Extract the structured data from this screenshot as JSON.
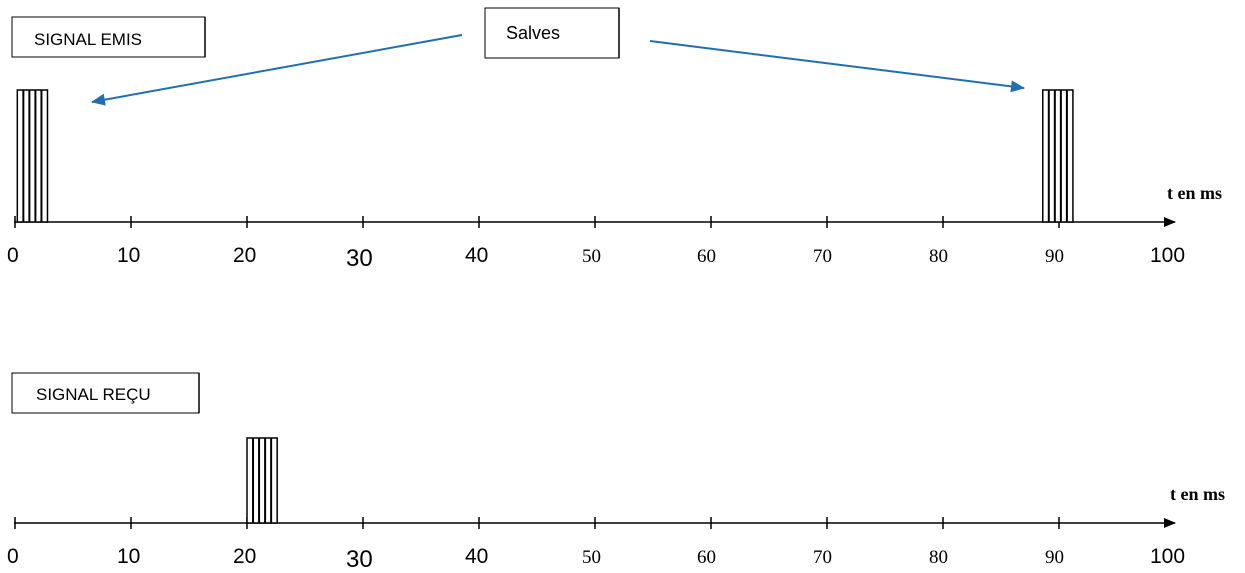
{
  "emitted": {
    "label": "SIGNAL EMIS",
    "unit": "t en ms",
    "tick_labels": [
      "0",
      "10",
      "20",
      "30",
      "40",
      "50",
      "60",
      "70",
      "80",
      "90",
      "100"
    ],
    "bursts_ms": [
      [
        0.2,
        2.8
      ],
      [
        88.6,
        91.2
      ]
    ]
  },
  "received": {
    "label": "SIGNAL REÇU",
    "unit": "t en ms",
    "tick_labels": [
      "0",
      "10",
      "20",
      "30",
      "40",
      "50",
      "60",
      "70",
      "80",
      "90",
      "100"
    ],
    "bursts_ms": [
      [
        20.0,
        22.6
      ]
    ]
  },
  "callout": {
    "label": "Salves"
  },
  "colors": {
    "arrow": "#1f6fb5",
    "axis": "#000000"
  }
}
